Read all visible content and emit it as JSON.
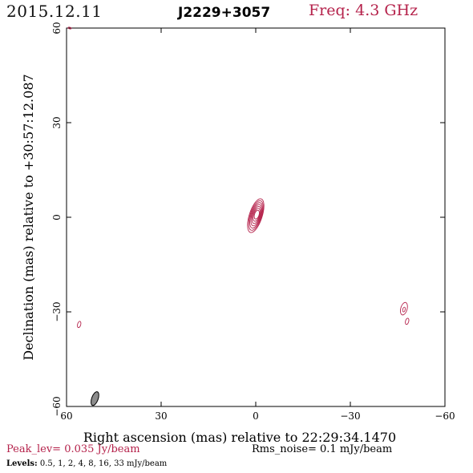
{
  "header": {
    "date": "2015.12.11",
    "source": "J2229+3057",
    "freq": "Freq: 4.3 GHz"
  },
  "chart_data": {
    "type": "contour",
    "xlabel": "Right ascension (mas) relative to 22:29:34.1470",
    "ylabel": "Declination (mas) relative to +30:57:12.087",
    "xlim": [
      60,
      -60
    ],
    "ylim": [
      -60,
      60
    ],
    "x_ticks": [
      60,
      30,
      0,
      -30,
      -60
    ],
    "y_ticks": [
      -60,
      -30,
      0,
      30,
      60
    ],
    "x_tick_labels": [
      "60",
      "30",
      "0",
      "−30",
      "−60"
    ],
    "y_tick_labels": [
      "−60",
      "−30",
      "0",
      "30",
      "60"
    ],
    "core": {
      "x": 0,
      "y": 0,
      "n_contours": 7
    },
    "features": [
      {
        "x": 59,
        "y": 60
      },
      {
        "x": 56,
        "y": -34
      },
      {
        "x": -47,
        "y": -29
      },
      {
        "x": -48,
        "y": -33
      }
    ],
    "beam": {
      "x": 51,
      "y": -57
    },
    "contour_color": "#b5224b",
    "beam_color": "#8c8c8c"
  },
  "footer": {
    "peak": "Peak_lev=  0.035 Jy/beam",
    "rms": "Rms_noise=   0.1 mJy/beam",
    "levels_label": "Levels:",
    "levels_values": "0.5,    1,    2,    4,    8,   16,   33 mJy/beam"
  }
}
